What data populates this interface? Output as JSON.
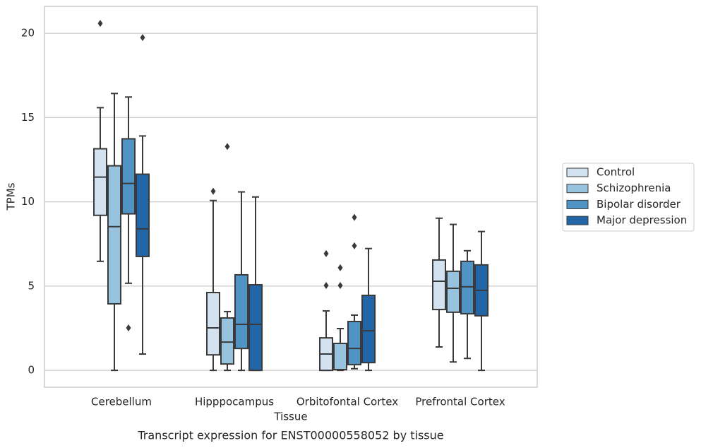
{
  "chart_data": {
    "type": "boxplot",
    "title": "Transcript expression for ENST00000558052 by tissue",
    "x_label": "Tissue",
    "y_label": "TPMs",
    "categories": [
      "Cerebellum",
      "Hipppocampus",
      "Orbitofontal Cortex",
      "Prefrontal Cortex"
    ],
    "ylim": [
      -1,
      21.6
    ],
    "yticks": [
      0,
      5,
      10,
      15,
      20
    ],
    "grid": true,
    "legend": "right",
    "series": [
      {
        "name": "Control",
        "color": "#d3e2f0",
        "values": [
          {
            "whislo": 6.47,
            "q1": 9.2,
            "med": 11.47,
            "q3": 13.15,
            "whishi": 15.59,
            "fliers": [
              20.59
            ]
          },
          {
            "whislo": 0,
            "q1": 0.92,
            "med": 2.52,
            "q3": 4.62,
            "whishi": 10.08,
            "fliers": [
              10.63
            ]
          },
          {
            "whislo": 0,
            "q1": 0,
            "med": 0.97,
            "q3": 1.93,
            "whishi": 3.53,
            "fliers": [
              6.93,
              5.04
            ]
          },
          {
            "whislo": 1.39,
            "q1": 3.61,
            "med": 5.29,
            "q3": 6.55,
            "whishi": 9.03,
            "fliers": []
          }
        ]
      },
      {
        "name": "Schizophrenia",
        "color": "#98c3de",
        "values": [
          {
            "whislo": 0,
            "q1": 3.95,
            "med": 8.53,
            "q3": 12.14,
            "whishi": 16.43,
            "fliers": []
          },
          {
            "whislo": 0,
            "q1": 0.38,
            "med": 1.68,
            "q3": 3.11,
            "whishi": 3.49,
            "fliers": [
              13.28
            ]
          },
          {
            "whislo": 0,
            "q1": 0.04,
            "med": 0.05,
            "q3": 1.6,
            "whishi": 2.48,
            "fliers": [
              6.09,
              5.04
            ]
          },
          {
            "whislo": 0.5,
            "q1": 3.45,
            "med": 4.87,
            "q3": 5.88,
            "whishi": 8.66,
            "fliers": []
          }
        ]
      },
      {
        "name": "Bipolar disorder",
        "color": "#4f94c4",
        "values": [
          {
            "whislo": 5.17,
            "q1": 9.29,
            "med": 11.09,
            "q3": 13.74,
            "whishi": 16.22,
            "fliers": [
              2.52
            ]
          },
          {
            "whislo": 0,
            "q1": 1.3,
            "med": 2.73,
            "q3": 5.67,
            "whishi": 10.59,
            "fliers": []
          },
          {
            "whislo": 0.1,
            "q1": 0.34,
            "med": 1.3,
            "q3": 2.9,
            "whishi": 3.28,
            "fliers": [
              7.39,
              9.08
            ]
          },
          {
            "whislo": 0.71,
            "q1": 3.36,
            "med": 4.96,
            "q3": 6.47,
            "whishi": 7.1,
            "fliers": []
          }
        ]
      },
      {
        "name": "Major depression",
        "color": "#2366a8",
        "values": [
          {
            "whislo": 0.97,
            "q1": 6.76,
            "med": 8.4,
            "q3": 11.64,
            "whishi": 13.91,
            "fliers": [
              19.75
            ]
          },
          {
            "whislo": 0,
            "q1": 0,
            "med": 2.73,
            "q3": 5.08,
            "whishi": 10.29,
            "fliers": []
          },
          {
            "whislo": 0,
            "q1": 0.46,
            "med": 2.35,
            "q3": 4.45,
            "whishi": 7.23,
            "fliers": []
          },
          {
            "whislo": 0,
            "q1": 3.24,
            "med": 4.75,
            "q3": 6.26,
            "whishi": 8.24,
            "fliers": []
          }
        ]
      }
    ]
  }
}
